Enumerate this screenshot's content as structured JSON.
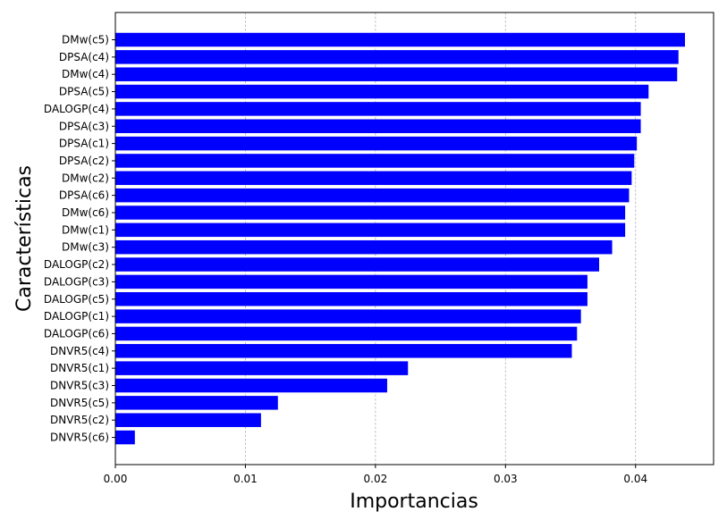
{
  "chart_data": {
    "type": "bar",
    "orientation": "horizontal",
    "xlabel": "Importancias",
    "ylabel": "Características",
    "xlim": [
      0.0,
      0.046
    ],
    "x_ticks": [
      "0.00",
      "0.01",
      "0.02",
      "0.03",
      "0.04"
    ],
    "x_grid": true,
    "bar_color": "#0000ff",
    "categories": [
      "DMw(c5)",
      "DPSA(c4)",
      "DMw(c4)",
      "DPSA(c5)",
      "DALOGP(c4)",
      "DPSA(c3)",
      "DPSA(c1)",
      "DPSA(c2)",
      "DMw(c2)",
      "DPSA(c6)",
      "DMw(c6)",
      "DMw(c1)",
      "DMw(c3)",
      "DALOGP(c2)",
      "DALOGP(c3)",
      "DALOGP(c5)",
      "DALOGP(c1)",
      "DALOGP(c6)",
      "DNVR5(c4)",
      "DNVR5(c1)",
      "DNVR5(c3)",
      "DNVR5(c5)",
      "DNVR5(c2)",
      "DNVR5(c6)"
    ],
    "values": [
      0.0438,
      0.0433,
      0.0432,
      0.041,
      0.0404,
      0.0404,
      0.0401,
      0.0399,
      0.0397,
      0.0395,
      0.0392,
      0.0392,
      0.0382,
      0.0372,
      0.0363,
      0.0363,
      0.0358,
      0.0355,
      0.0351,
      0.0225,
      0.0209,
      0.0125,
      0.0112,
      0.0015
    ]
  }
}
